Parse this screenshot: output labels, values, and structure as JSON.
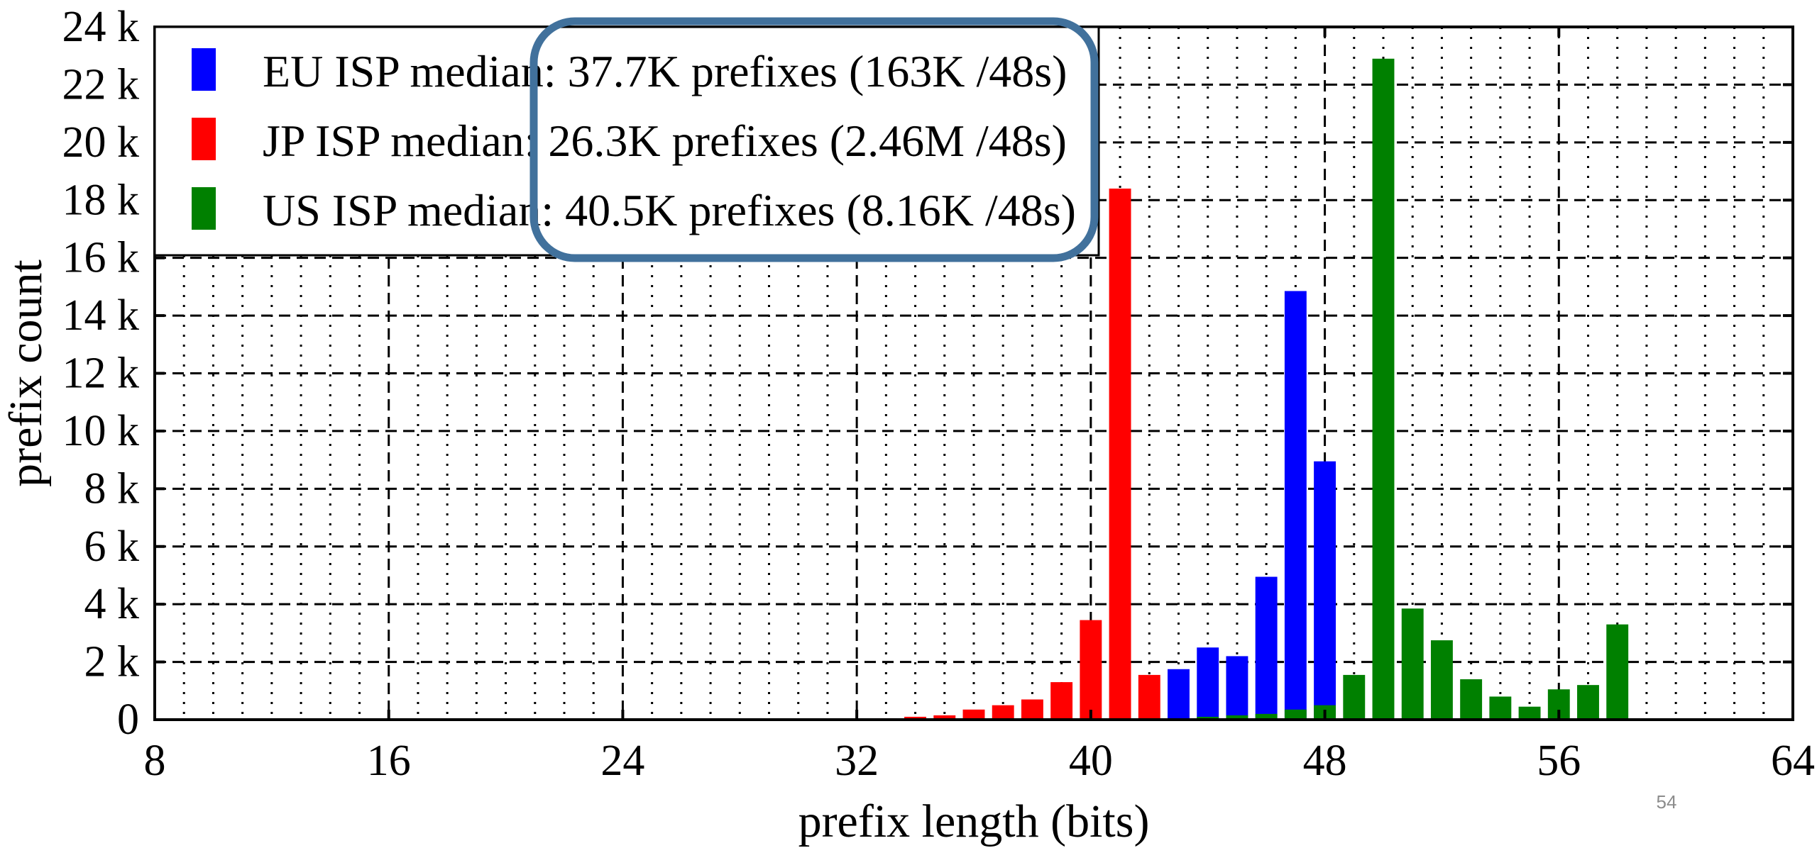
{
  "chart_data": {
    "type": "bar",
    "xlabel": "prefix length (bits)",
    "ylabel": "prefix count",
    "xlim": [
      8,
      64
    ],
    "ylim": [
      0,
      24000
    ],
    "x_ticks": [
      8,
      16,
      24,
      32,
      40,
      48,
      56,
      64
    ],
    "x_tick_labels": [
      "8",
      "16",
      "24",
      "32",
      "40",
      "48",
      "56",
      "64"
    ],
    "y_ticks": [
      0,
      2000,
      4000,
      6000,
      8000,
      10000,
      12000,
      14000,
      16000,
      18000,
      20000,
      22000,
      24000
    ],
    "y_tick_labels": [
      "0",
      "2 k",
      "4 k",
      "6 k",
      "8 k",
      "10 k",
      "12 k",
      "14 k",
      "16 k",
      "18 k",
      "20 k",
      "22 k",
      "24 k"
    ],
    "grid": true,
    "legend_position": "top-left",
    "series": [
      {
        "name": "EU ISP median: 37.7K prefixes (163K /48s)",
        "color": "#0000ff",
        "x": [
          43,
          44,
          45,
          46,
          47,
          48
        ],
        "values": [
          1750,
          2500,
          2200,
          4950,
          14850,
          8950
        ]
      },
      {
        "name": "JP ISP median: 26.3K prefixes (2.46M /48s)",
        "color": "#ff0000",
        "x": [
          33,
          34,
          35,
          36,
          37,
          38,
          39,
          40,
          41,
          42
        ],
        "values": [
          50,
          100,
          150,
          350,
          500,
          700,
          1300,
          3450,
          18400,
          1550
        ]
      },
      {
        "name": "US ISP median: 40.5K prefixes (8.16K /48s)",
        "color": "#008000",
        "x": [
          44,
          45,
          46,
          47,
          48,
          49,
          50,
          51,
          52,
          53,
          54,
          55,
          56,
          57,
          58
        ],
        "values": [
          100,
          150,
          200,
          350,
          500,
          1550,
          22900,
          3850,
          2750,
          1400,
          800,
          450,
          1050,
          1200,
          3300
        ]
      }
    ],
    "annotation": {
      "shape": "rounded-rectangle",
      "color": "#41719c",
      "highlights": "legend values"
    }
  },
  "slide_number": "54"
}
